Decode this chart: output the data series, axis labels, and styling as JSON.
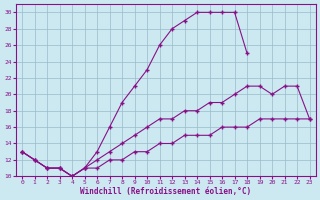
{
  "xlabel": "Windchill (Refroidissement éolien,°C)",
  "xlim": [
    -0.5,
    23.5
  ],
  "ylim": [
    10,
    31
  ],
  "xticks": [
    0,
    1,
    2,
    3,
    4,
    5,
    6,
    7,
    8,
    9,
    10,
    11,
    12,
    13,
    14,
    15,
    16,
    17,
    18,
    19,
    20,
    21,
    22,
    23
  ],
  "yticks": [
    10,
    12,
    14,
    16,
    18,
    20,
    22,
    24,
    26,
    28,
    30
  ],
  "bg_color": "#cce8f0",
  "line_color": "#881188",
  "grid_color": "#99bbcc",
  "line1_x": [
    0,
    1,
    2,
    3,
    4,
    5,
    6,
    7,
    8,
    9,
    10,
    11,
    12,
    13,
    14,
    15,
    16,
    17,
    18
  ],
  "line1_y": [
    13,
    12,
    11,
    11,
    10,
    11,
    13,
    16,
    19,
    21,
    23,
    26,
    28,
    29,
    30,
    30,
    30,
    30,
    25
  ],
  "line2_x": [
    0,
    1,
    2,
    3,
    4,
    5,
    6,
    7,
    8,
    9,
    10,
    11,
    12,
    13,
    14,
    15,
    16,
    17,
    18,
    19,
    20,
    21,
    22,
    23
  ],
  "line2_y": [
    13,
    12,
    11,
    11,
    10,
    11,
    12,
    13,
    14,
    15,
    16,
    17,
    17,
    18,
    18,
    19,
    19,
    20,
    21,
    21,
    20,
    21,
    21,
    17
  ],
  "line3_x": [
    0,
    1,
    2,
    3,
    4,
    5,
    6,
    7,
    8,
    9,
    10,
    11,
    12,
    13,
    14,
    15,
    16,
    17,
    18,
    19,
    20,
    21,
    22,
    23
  ],
  "line3_y": [
    13,
    12,
    11,
    11,
    10,
    11,
    11,
    12,
    12,
    13,
    13,
    14,
    14,
    15,
    15,
    15,
    16,
    16,
    16,
    17,
    17,
    17,
    17,
    17
  ]
}
